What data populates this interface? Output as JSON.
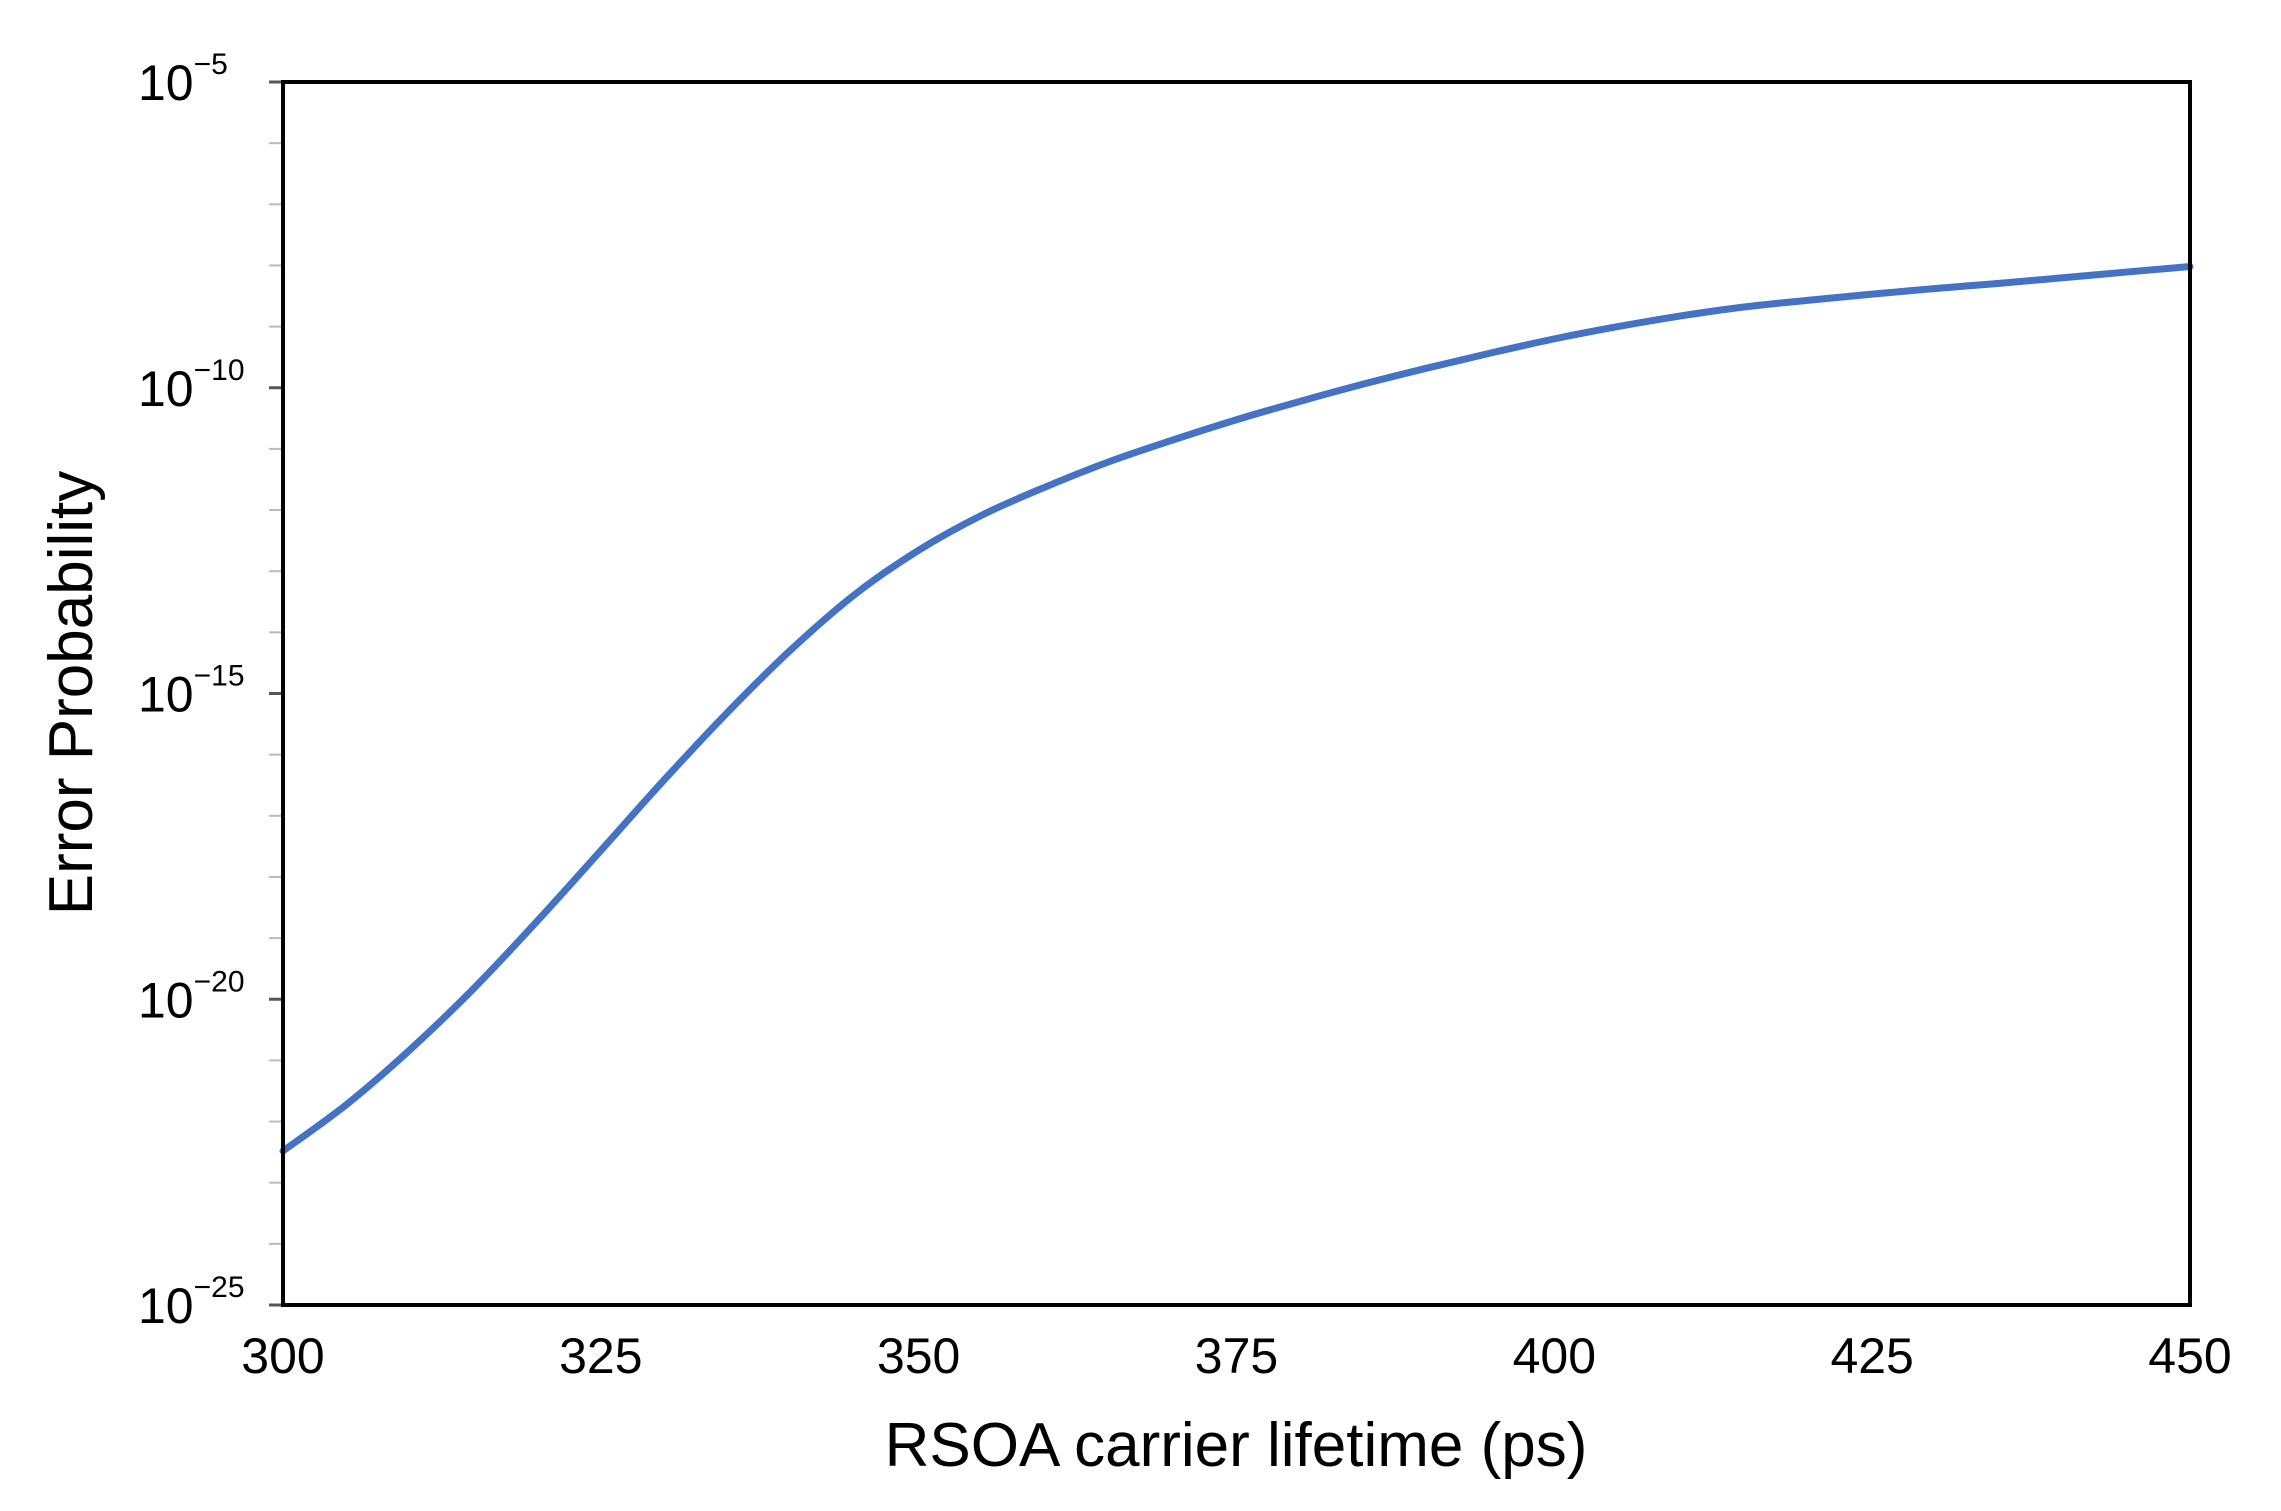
{
  "chart_data": {
    "type": "line",
    "title": "",
    "xlabel": "RSOA carrier lifetime (ps)",
    "ylabel": "Error Probability",
    "xlim": [
      300,
      450
    ],
    "ylim": [
      1e-25,
      1e-05
    ],
    "y_scale": "log",
    "grid": false,
    "legend": "none",
    "x_ticks": [
      300,
      325,
      350,
      375,
      400,
      425,
      450
    ],
    "x_tick_labels": [
      "300",
      "325",
      "350",
      "375",
      "400",
      "425",
      "450"
    ],
    "y_ticks": [
      1e-25,
      1e-20,
      1e-15,
      1e-10,
      1e-05
    ],
    "y_tick_labels": [
      {
        "base": "10",
        "exp": "−25"
      },
      {
        "base": "10",
        "exp": "−20"
      },
      {
        "base": "10",
        "exp": "−15"
      },
      {
        "base": "10",
        "exp": "−10"
      },
      {
        "base": "10",
        "exp": "−5"
      }
    ],
    "series": [
      {
        "color": "#4472c4",
        "x": [
          300,
          305,
          310,
          315,
          320,
          325,
          330,
          335,
          340,
          345,
          350,
          355,
          360,
          365,
          370,
          375,
          380,
          385,
          390,
          395,
          400,
          405,
          410,
          415,
          420,
          425,
          430,
          435,
          440,
          445,
          450
        ],
        "y": [
          3.3e-23,
          1.9e-22,
          1.5e-21,
          1.5e-20,
          1.9e-19,
          2.7e-18,
          3.9e-17,
          5e-16,
          5.3e-15,
          4.2e-14,
          2.2e-13,
          8.3e-13,
          2.4e-12,
          6.2e-12,
          1.4e-11,
          3e-11,
          6e-11,
          1.15e-10,
          2.1e-10,
          3.7e-10,
          6.3e-10,
          1e-09,
          1.5e-09,
          2.1e-09,
          2.7e-09,
          3.4e-09,
          4.2e-09,
          5.1e-09,
          6.3e-09,
          7.8e-09,
          9.6e-09
        ]
      }
    ]
  }
}
